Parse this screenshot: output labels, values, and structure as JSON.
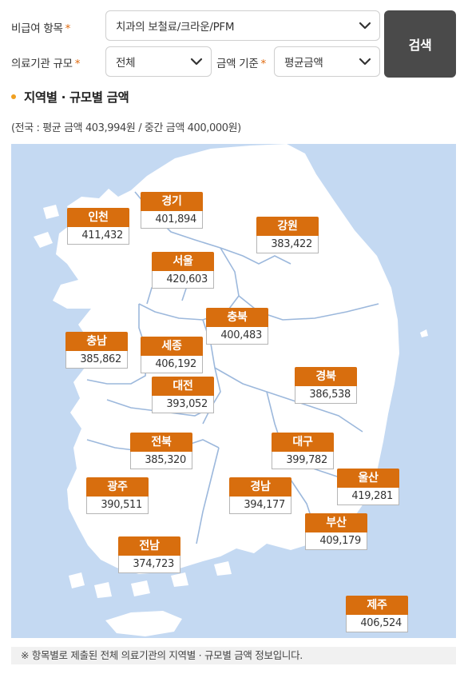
{
  "filters": {
    "item_label": "비급여 항목",
    "item_value": "치과의 보철료/크라운/PFM",
    "scale_label": "의료기관 규모",
    "scale_value": "전체",
    "basis_label": "금액 기준",
    "basis_value": "평균금액",
    "required_mark": "*",
    "search_label": "검색"
  },
  "section": {
    "title": "지역별 · 규모별 금액",
    "summary": "(전국 : 평균 금액 403,994원 / 중간 금액 400,000원)"
  },
  "regions": [
    {
      "name": "인천",
      "value": "411,432"
    },
    {
      "name": "경기",
      "value": "401,894"
    },
    {
      "name": "강원",
      "value": "383,422"
    },
    {
      "name": "서울",
      "value": "420,603"
    },
    {
      "name": "충북",
      "value": "400,483"
    },
    {
      "name": "충남",
      "value": "385,862"
    },
    {
      "name": "세종",
      "value": "406,192"
    },
    {
      "name": "대전",
      "value": "393,052"
    },
    {
      "name": "경북",
      "value": "386,538"
    },
    {
      "name": "전북",
      "value": "385,320"
    },
    {
      "name": "대구",
      "value": "399,782"
    },
    {
      "name": "울산",
      "value": "419,281"
    },
    {
      "name": "광주",
      "value": "390,511"
    },
    {
      "name": "경남",
      "value": "394,177"
    },
    {
      "name": "부산",
      "value": "409,179"
    },
    {
      "name": "전남",
      "value": "374,723"
    },
    {
      "name": "제주",
      "value": "406,524"
    }
  ],
  "colors": {
    "label_bg": "#d86e0e",
    "map_sea": "#c4d9f2",
    "land": "#ffffff",
    "button_bg": "#4a4a4a",
    "required": "#e06a0e"
  },
  "icons": {
    "dropdown": "chevron-down-icon",
    "bullet": "bullet-dot-icon"
  },
  "footnote": "※ 항목별로 제출된 전체 의료기관의 지역별 · 규모별 금액 정보입니다."
}
